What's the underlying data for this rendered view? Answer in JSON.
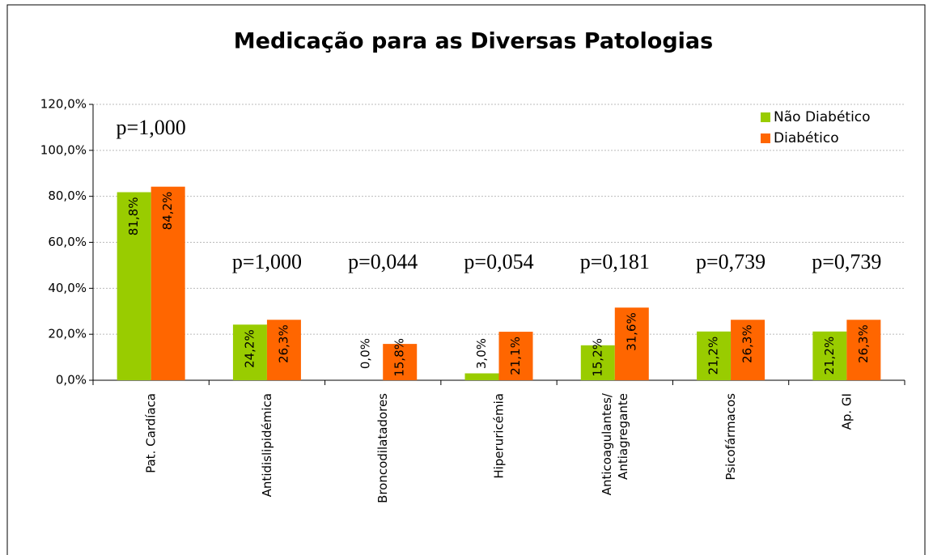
{
  "chart_data": {
    "type": "bar",
    "title": "Medicação para as Diversas Patologias",
    "categories": [
      "Pat. Cardíaca",
      "Antidislipidémica",
      "Broncodilatadores",
      "Hiperuricémia",
      "Anticoagulantes/\nAntiagregante",
      "Psicofármacos",
      "Ap. GI"
    ],
    "series": [
      {
        "name": "Não Diabético",
        "color": "#99cc00",
        "values": [
          81.8,
          24.2,
          0.0,
          3.0,
          15.2,
          21.2,
          21.2
        ],
        "value_labels": [
          "81,8%",
          "24,2%",
          "0,0%",
          "3,0%",
          "15,2%",
          "21,2%",
          "21,2%"
        ]
      },
      {
        "name": "Diabético",
        "color": "#ff6600",
        "values": [
          84.2,
          26.3,
          15.8,
          21.1,
          31.6,
          26.3,
          26.3
        ],
        "value_labels": [
          "84,2%",
          "26,3%",
          "15,8%",
          "21,1%",
          "31,6%",
          "26,3%",
          "26,3%"
        ]
      }
    ],
    "annotations": [
      "p=1,000",
      "p=1,000",
      "p=0,044",
      "p=0,054",
      "p=0,181",
      "p=0,739",
      "p=0,739"
    ],
    "ylim": [
      0,
      120
    ],
    "yticks": [
      {
        "value": 0,
        "label": "0,0%"
      },
      {
        "value": 20,
        "label": "20,0%"
      },
      {
        "value": 40,
        "label": "40,0%"
      },
      {
        "value": 60,
        "label": "60,0%"
      },
      {
        "value": 80,
        "label": "80,0%"
      },
      {
        "value": 100,
        "label": "100,0%"
      },
      {
        "value": 120,
        "label": "120,0%"
      }
    ],
    "grid": true,
    "legend": "top-right"
  }
}
